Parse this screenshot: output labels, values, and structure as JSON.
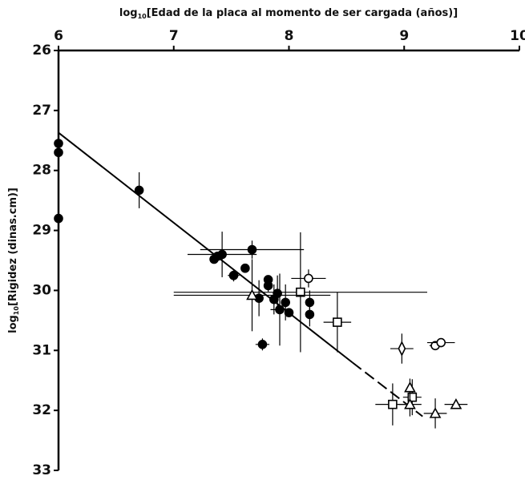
{
  "chart_data": {
    "type": "scatter",
    "xlabel": [
      "log",
      "10",
      "[Edad de la placa al momento de ser cargada (años)]"
    ],
    "ylabel": [
      "log",
      "10",
      "[Rigidez (dinas.cm)]"
    ],
    "x_axis_position": "top",
    "y_inverted": true,
    "xlim": [
      6,
      10
    ],
    "xticks": [
      6,
      7,
      8,
      9,
      10
    ],
    "ylim": [
      26,
      33
    ],
    "yticks": [
      26,
      27,
      28,
      29,
      30,
      31,
      32,
      33
    ],
    "series": [
      {
        "marker": "circle",
        "filled": true,
        "color": "#000000",
        "x": [
          6,
          6,
          6,
          6.7,
          7.35,
          7.38,
          7.42,
          7.68,
          7.52,
          7.62,
          7.82,
          7.82,
          7.74,
          7.87,
          7.9,
          7.92,
          7.97,
          8.0,
          8.18,
          8.18,
          7.77
        ],
        "values": [
          27.55,
          27.7,
          28.8,
          28.33,
          29.48,
          29.43,
          29.4,
          29.32,
          29.75,
          29.63,
          29.82,
          29.92,
          30.13,
          30.15,
          30.05,
          30.32,
          30.2,
          30.37,
          30.2,
          30.4,
          30.9
        ],
        "xerr": [
          null,
          null,
          null,
          null,
          null,
          null,
          0.3,
          0.45,
          0.05,
          null,
          null,
          null,
          null,
          null,
          null,
          0.08,
          null,
          null,
          null,
          null,
          0.06
        ],
        "yerr": [
          null,
          null,
          null,
          0.3,
          null,
          null,
          0.38,
          0.15,
          0.1,
          null,
          null,
          0.1,
          0.3,
          0.25,
          0.3,
          0.6,
          0.3,
          null,
          0.2,
          0.2,
          0.1
        ]
      },
      {
        "marker": "circle",
        "filled": false,
        "color": "#000000",
        "x": [
          8.17,
          9.27,
          9.32
        ],
        "values": [
          29.8,
          30.92,
          30.87
        ],
        "xerr": [
          0.15,
          0.05,
          0.12
        ],
        "yerr": [
          0.15,
          null,
          null
        ]
      },
      {
        "marker": "square",
        "filled": false,
        "color": "#000000",
        "x": [
          8.1,
          8.42,
          8.9,
          9.07
        ],
        "values": [
          30.03,
          30.53,
          31.9,
          31.78
        ],
        "xerr": [
          1.1,
          0.12,
          0.15,
          0.08
        ],
        "yerr": [
          1.0,
          0.5,
          0.35,
          0.3
        ]
      },
      {
        "marker": "triangle",
        "filled": false,
        "color": "#000000",
        "x": [
          7.68,
          9.05,
          9.05,
          9.27,
          9.45
        ],
        "values": [
          30.08,
          31.62,
          31.9,
          32.05,
          31.9
        ],
        "xerr": [
          0.68,
          null,
          0.1,
          0.1,
          0.1
        ],
        "yerr": [
          0.6,
          0.15,
          0.2,
          0.25,
          null
        ]
      },
      {
        "marker": "diamond",
        "filled": false,
        "color": "#000000",
        "x": [
          8.98
        ],
        "values": [
          30.97
        ],
        "xerr": [
          0.1
        ],
        "yerr": [
          0.25
        ]
      }
    ],
    "fit_lines": [
      {
        "style": "solid",
        "x": [
          6,
          8.55
        ],
        "values": [
          27.37,
          31.2
        ]
      },
      {
        "style": "dashed",
        "x": [
          8.55,
          9.16
        ],
        "values": [
          31.2,
          32.1
        ]
      }
    ]
  }
}
